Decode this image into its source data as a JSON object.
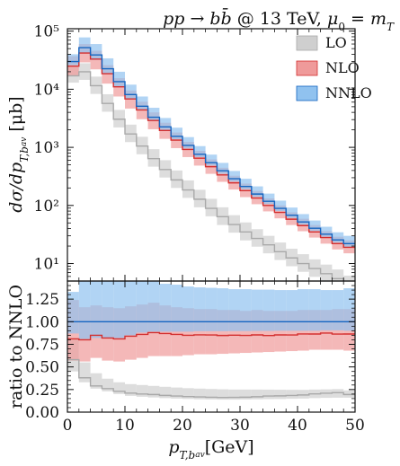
{
  "chart_data": {
    "type": "area",
    "title": "pp → bb̄ @ 13 TeV, μ₀ = m_T",
    "xlabel": "p_T,b_av [GeV]",
    "x_ticks": [
      "0",
      "10",
      "20",
      "30",
      "40",
      "50"
    ],
    "xlim": [
      0,
      50
    ],
    "bin_edges": [
      0,
      2,
      4,
      6,
      8,
      10,
      12,
      14,
      16,
      18,
      20,
      22,
      24,
      26,
      28,
      30,
      32,
      34,
      36,
      38,
      40,
      42,
      44,
      46,
      48,
      50
    ],
    "top": {
      "ylabel": "dσ/dp_T,b_av [μb]",
      "scale": "log",
      "ylim": [
        5,
        110000
      ],
      "y_ticks": [
        {
          "value": 10,
          "label": "10¹"
        },
        {
          "value": 100,
          "label": "10²"
        },
        {
          "value": 1000,
          "label": "10³"
        },
        {
          "value": 10000,
          "label": "10⁴"
        },
        {
          "value": 100000,
          "label": "10⁵"
        }
      ],
      "series": [
        {
          "name": "LO",
          "color": "#cfcfcf",
          "line": "#a9a9a9",
          "central": [
            17000,
            20000,
            11500,
            5700,
            3050,
            1700,
            1050,
            640,
            415,
            275,
            185,
            128,
            89,
            64,
            47,
            35,
            27,
            21,
            16,
            12.5,
            10,
            8.2,
            6.7,
            5.5,
            4.3
          ],
          "low": [
            13000,
            14500,
            8300,
            4100,
            2200,
            1230,
            760,
            465,
            302,
            200,
            135,
            93,
            65,
            46,
            34,
            25,
            19.5,
            15,
            11.5,
            9,
            7.2,
            5.9,
            4.8,
            3.9,
            3.1
          ],
          "high": [
            24000,
            28000,
            16500,
            8200,
            4400,
            2460,
            1520,
            930,
            600,
            400,
            270,
            186,
            130,
            93,
            68,
            51,
            39,
            30,
            23,
            18,
            14.5,
            11.8,
            9.6,
            7.9,
            6.2
          ]
        },
        {
          "name": "NLO",
          "color": "#ef9a9a",
          "line": "#d32f2f",
          "central": [
            25000,
            42000,
            33000,
            18500,
            11000,
            6800,
            4400,
            2900,
            1950,
            1330,
            920,
            650,
            465,
            335,
            245,
            180,
            134,
            100,
            76,
            58,
            45,
            35,
            28,
            22,
            19
          ],
          "low": [
            17000,
            29000,
            22000,
            12500,
            7500,
            4650,
            3050,
            2050,
            1400,
            970,
            680,
            485,
            350,
            255,
            188,
            139,
            105,
            79,
            60,
            46,
            36,
            28,
            22,
            17.5,
            15
          ],
          "high": [
            37000,
            60000,
            46000,
            26000,
            15500,
            9500,
            6100,
            4000,
            2650,
            1800,
            1240,
            870,
            620,
            445,
            325,
            238,
            177,
            132,
            100,
            76,
            59,
            46,
            36,
            29,
            25
          ]
        },
        {
          "name": "NNLO",
          "color": "#90c2ef",
          "line": "#1565c0",
          "central": [
            30000,
            52000,
            39000,
            22500,
            13500,
            8100,
            5100,
            3300,
            2250,
            1550,
            1080,
            760,
            545,
            395,
            288,
            212,
            157,
            118,
            89,
            68,
            52,
            40.5,
            32,
            25.5,
            22
          ],
          "low": [
            26000,
            42000,
            32000,
            18500,
            11000,
            6900,
            4500,
            2950,
            2000,
            1380,
            960,
            680,
            488,
            353,
            258,
            190,
            141,
            106,
            80,
            61,
            47,
            36.5,
            29,
            23,
            19.5
          ],
          "high": [
            40000,
            78000,
            60000,
            34000,
            20000,
            12000,
            7500,
            4800,
            3200,
            2180,
            1500,
            1050,
            750,
            540,
            392,
            288,
            213,
            160,
            121,
            92,
            71,
            55,
            43,
            34.5,
            30
          ]
        }
      ]
    },
    "ratio": {
      "ylabel": "ratio to NNLO",
      "ylim": [
        0,
        1.45
      ],
      "y_ticks": [
        {
          "value": 0,
          "label": "0.00"
        },
        {
          "value": 0.25,
          "label": "0.25"
        },
        {
          "value": 0.5,
          "label": "0.50"
        },
        {
          "value": 0.75,
          "label": "0.75"
        },
        {
          "value": 1.0,
          "label": "1.00"
        },
        {
          "value": 1.25,
          "label": "1.25"
        }
      ],
      "series": [
        {
          "name": "LO",
          "color": "#cfcfcf",
          "line": "#a9a9a9",
          "central": [
            0.58,
            0.38,
            0.29,
            0.26,
            0.23,
            0.21,
            0.2,
            0.195,
            0.185,
            0.178,
            0.172,
            0.168,
            0.164,
            0.162,
            0.163,
            0.165,
            0.17,
            0.178,
            0.18,
            0.184,
            0.19,
            0.202,
            0.209,
            0.215,
            0.195
          ],
          "low": [
            0.45,
            0.33,
            0.26,
            0.23,
            0.2,
            0.18,
            0.17,
            0.162,
            0.155,
            0.15,
            0.146,
            0.142,
            0.14,
            0.138,
            0.138,
            0.14,
            0.142,
            0.144,
            0.145,
            0.148,
            0.15,
            0.155,
            0.158,
            0.16,
            0.16
          ],
          "high": [
            0.8,
            0.55,
            0.43,
            0.37,
            0.33,
            0.31,
            0.3,
            0.29,
            0.28,
            0.272,
            0.265,
            0.26,
            0.256,
            0.253,
            0.25,
            0.25,
            0.25,
            0.249,
            0.248,
            0.247,
            0.246,
            0.25,
            0.252,
            0.255,
            0.24
          ]
        },
        {
          "name": "NLO",
          "color": "#ef9a9a",
          "line": "#d32f2f",
          "central": [
            0.81,
            0.8,
            0.85,
            0.82,
            0.81,
            0.84,
            0.86,
            0.88,
            0.87,
            0.86,
            0.85,
            0.855,
            0.853,
            0.848,
            0.851,
            0.849,
            0.854,
            0.847,
            0.854,
            0.853,
            0.865,
            0.864,
            0.875,
            0.863,
            0.864
          ],
          "low": [
            0.57,
            0.56,
            0.6,
            0.57,
            0.56,
            0.58,
            0.6,
            0.62,
            0.62,
            0.62,
            0.63,
            0.64,
            0.64,
            0.645,
            0.65,
            0.655,
            0.66,
            0.665,
            0.67,
            0.675,
            0.68,
            0.69,
            0.69,
            0.69,
            0.68
          ],
          "high": [
            1.24,
            1.16,
            1.18,
            1.16,
            1.15,
            1.17,
            1.19,
            1.21,
            1.18,
            1.16,
            1.15,
            1.14,
            1.14,
            1.13,
            1.13,
            1.12,
            1.13,
            1.12,
            1.12,
            1.12,
            1.13,
            1.13,
            1.13,
            1.14,
            1.14
          ]
        },
        {
          "name": "NNLO",
          "color": "#90c2ef",
          "line": "#1565c0",
          "central": [
            1,
            1,
            1,
            1,
            1,
            1,
            1,
            1,
            1,
            1,
            1,
            1,
            1,
            1,
            1,
            1,
            1,
            1,
            1,
            1,
            1,
            1,
            1,
            1,
            1
          ],
          "low": [
            0.87,
            0.81,
            0.82,
            0.82,
            0.82,
            0.85,
            0.88,
            0.89,
            0.89,
            0.89,
            0.89,
            0.895,
            0.895,
            0.895,
            0.896,
            0.896,
            0.898,
            0.898,
            0.9,
            0.9,
            0.9,
            0.9,
            0.905,
            0.905,
            0.9
          ],
          "high": [
            1.33,
            1.5,
            1.54,
            1.51,
            1.48,
            1.48,
            1.47,
            1.45,
            1.42,
            1.41,
            1.39,
            1.38,
            1.375,
            1.37,
            1.36,
            1.36,
            1.355,
            1.355,
            1.35,
            1.35,
            1.36,
            1.36,
            1.35,
            1.35,
            1.37
          ]
        }
      ]
    },
    "legend": {
      "placement": "top-right",
      "items": [
        "LO",
        "NLO",
        "NNLO"
      ]
    }
  }
}
